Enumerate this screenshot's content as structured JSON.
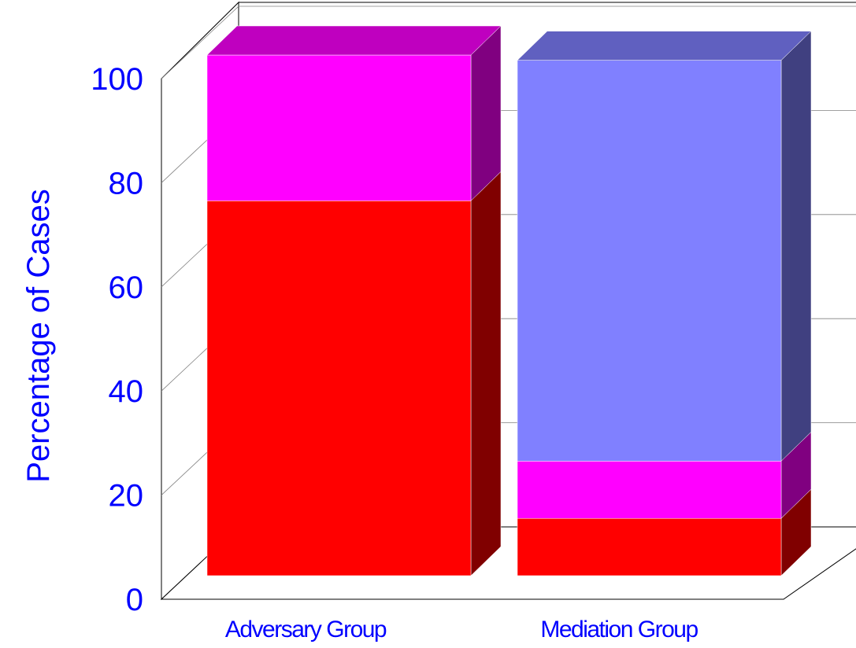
{
  "chart_data": {
    "type": "bar",
    "stacked": true,
    "three_d": true,
    "ylabel": "Percentage of Cases",
    "xlabel": "",
    "ylim": [
      0,
      100
    ],
    "yticks": [
      "0",
      "20",
      "40",
      "60",
      "80",
      "100"
    ],
    "categories": [
      "Adversary Group",
      "Mediation Group"
    ],
    "series": [
      {
        "color": "#ff0000",
        "side_color": "#800000",
        "top_color": "#c00000",
        "values": [
          72,
          11
        ]
      },
      {
        "color": "#ff00ff",
        "side_color": "#800080",
        "top_color": "#bf00bf",
        "values": [
          28,
          11
        ]
      },
      {
        "color": "#8080ff",
        "side_color": "#404080",
        "top_color": "#6060c0",
        "values": [
          0,
          77
        ]
      }
    ],
    "grid": true,
    "text_color": "#0000ff"
  }
}
